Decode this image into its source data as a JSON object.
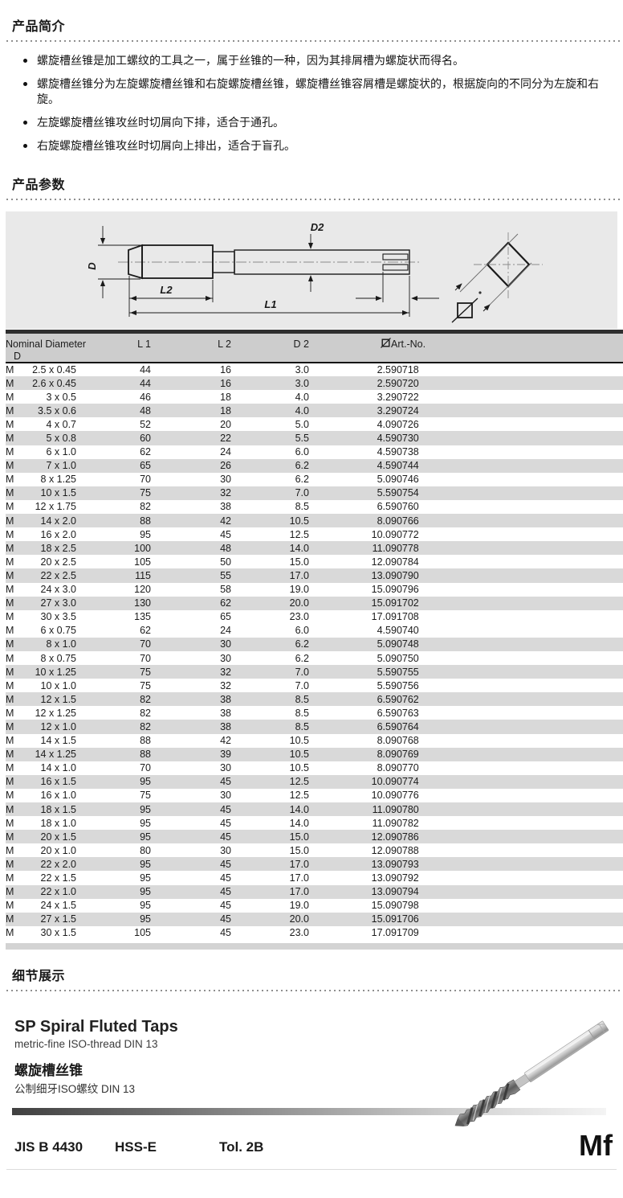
{
  "sections": {
    "intro_title": "产品简介",
    "params_title": "产品参数",
    "details_title": "细节展示"
  },
  "intro": {
    "bullets": [
      "螺旋槽丝锥是加工螺纹的工具之一，属于丝锥的一种，因为其排屑槽为螺旋状而得名。",
      "螺旋槽丝锥分为左旋螺旋槽丝锥和右旋螺旋槽丝锥，螺旋槽丝锥容屑槽是螺旋状的，根据旋向的不同分为左旋和右旋。",
      "左旋螺旋槽丝锥攻丝时切屑向下排，适合于通孔。",
      "右旋螺旋槽丝锥攻丝时切屑向上排出，适合于盲孔。"
    ]
  },
  "diagram": {
    "labels": {
      "d": "D",
      "l2": "L2",
      "l1": "L1",
      "d2": "D2"
    },
    "icons": {
      "square_section": "square-with-diagonal-slash"
    }
  },
  "table": {
    "header": {
      "nominal_line1": "Nominal Diameter",
      "nominal_line2": "D",
      "l1": "L 1",
      "l2": "L 2",
      "d2": "D 2",
      "square_icon": "square-with-diagonal-slash",
      "art": "Art.-No."
    },
    "rows": [
      {
        "m": "M",
        "size": "2.5 x 0.45",
        "l1": "44",
        "l2": "16",
        "d2": "3.0",
        "sq": "2.5",
        "art": "90718",
        "shaded": false
      },
      {
        "m": "M",
        "size": "2.6 x 0.45",
        "l1": "44",
        "l2": "16",
        "d2": "3.0",
        "sq": "2.5",
        "art": "90720",
        "shaded": true
      },
      {
        "m": "M",
        "size": "3 x 0.5",
        "l1": "46",
        "l2": "18",
        "d2": "4.0",
        "sq": "3.2",
        "art": "90722",
        "shaded": false
      },
      {
        "m": "M",
        "size": "3.5 x 0.6",
        "l1": "48",
        "l2": "18",
        "d2": "4.0",
        "sq": "3.2",
        "art": "90724",
        "shaded": true
      },
      {
        "m": "M",
        "size": "4 x 0.7",
        "l1": "52",
        "l2": "20",
        "d2": "5.0",
        "sq": "4.0",
        "art": "90726",
        "shaded": false
      },
      {
        "m": "M",
        "size": "5 x 0.8",
        "l1": "60",
        "l2": "22",
        "d2": "5.5",
        "sq": "4.5",
        "art": "90730",
        "shaded": true
      },
      {
        "m": "M",
        "size": "6 x 1.0",
        "l1": "62",
        "l2": "24",
        "d2": "6.0",
        "sq": "4.5",
        "art": "90738",
        "shaded": false
      },
      {
        "m": "M",
        "size": "7 x 1.0",
        "l1": "65",
        "l2": "26",
        "d2": "6.2",
        "sq": "4.5",
        "art": "90744",
        "shaded": true
      },
      {
        "m": "M",
        "size": "8 x 1.25",
        "l1": "70",
        "l2": "30",
        "d2": "6.2",
        "sq": "5.0",
        "art": "90746",
        "shaded": false
      },
      {
        "m": "M",
        "size": "10 x 1.5",
        "l1": "75",
        "l2": "32",
        "d2": "7.0",
        "sq": "5.5",
        "art": "90754",
        "shaded": true
      },
      {
        "m": "M",
        "size": "12 x 1.75",
        "l1": "82",
        "l2": "38",
        "d2": "8.5",
        "sq": "6.5",
        "art": "90760",
        "shaded": false
      },
      {
        "m": "M",
        "size": "14 x 2.0",
        "l1": "88",
        "l2": "42",
        "d2": "10.5",
        "sq": "8.0",
        "art": "90766",
        "shaded": true
      },
      {
        "m": "M",
        "size": "16 x 2.0",
        "l1": "95",
        "l2": "45",
        "d2": "12.5",
        "sq": "10.0",
        "art": "90772",
        "shaded": false
      },
      {
        "m": "M",
        "size": "18 x 2.5",
        "l1": "100",
        "l2": "48",
        "d2": "14.0",
        "sq": "11.0",
        "art": "90778",
        "shaded": true
      },
      {
        "m": "M",
        "size": "20 x 2.5",
        "l1": "105",
        "l2": "50",
        "d2": "15.0",
        "sq": "12.0",
        "art": "90784",
        "shaded": false
      },
      {
        "m": "M",
        "size": "22 x 2.5",
        "l1": "115",
        "l2": "55",
        "d2": "17.0",
        "sq": "13.0",
        "art": "90790",
        "shaded": true
      },
      {
        "m": "M",
        "size": "24 x 3.0",
        "l1": "120",
        "l2": "58",
        "d2": "19.0",
        "sq": "15.0",
        "art": "90796",
        "shaded": false
      },
      {
        "m": "M",
        "size": "27 x 3.0",
        "l1": "130",
        "l2": "62",
        "d2": "20.0",
        "sq": "15.0",
        "art": "91702",
        "shaded": true
      },
      {
        "m": "M",
        "size": "30 x 3.5",
        "l1": "135",
        "l2": "65",
        "d2": "23.0",
        "sq": "17.0",
        "art": "91708",
        "shaded": false
      },
      {
        "m": "M",
        "size": "6 x 0.75",
        "l1": "62",
        "l2": "24",
        "d2": "6.0",
        "sq": "4.5",
        "art": "90740",
        "shaded": false
      },
      {
        "m": "M",
        "size": "8 x 1.0",
        "l1": "70",
        "l2": "30",
        "d2": "6.2",
        "sq": "5.0",
        "art": "90748",
        "shaded": true
      },
      {
        "m": "M",
        "size": "8 x 0.75",
        "l1": "70",
        "l2": "30",
        "d2": "6.2",
        "sq": "5.0",
        "art": "90750",
        "shaded": false
      },
      {
        "m": "M",
        "size": "10 x 1.25",
        "l1": "75",
        "l2": "32",
        "d2": "7.0",
        "sq": "5.5",
        "art": "90755",
        "shaded": true
      },
      {
        "m": "M",
        "size": "10 x 1.0",
        "l1": "75",
        "l2": "32",
        "d2": "7.0",
        "sq": "5.5",
        "art": "90756",
        "shaded": false
      },
      {
        "m": "M",
        "size": "12 x 1.5",
        "l1": "82",
        "l2": "38",
        "d2": "8.5",
        "sq": "6.5",
        "art": "90762",
        "shaded": true
      },
      {
        "m": "M",
        "size": "12 x 1.25",
        "l1": "82",
        "l2": "38",
        "d2": "8.5",
        "sq": "6.5",
        "art": "90763",
        "shaded": false
      },
      {
        "m": "M",
        "size": "12 x 1.0",
        "l1": "82",
        "l2": "38",
        "d2": "8.5",
        "sq": "6.5",
        "art": "90764",
        "shaded": true
      },
      {
        "m": "M",
        "size": "14 x 1.5",
        "l1": "88",
        "l2": "42",
        "d2": "10.5",
        "sq": "8.0",
        "art": "90768",
        "shaded": false
      },
      {
        "m": "M",
        "size": "14 x 1.25",
        "l1": "88",
        "l2": "39",
        "d2": "10.5",
        "sq": "8.0",
        "art": "90769",
        "shaded": true
      },
      {
        "m": "M",
        "size": "14 x 1.0",
        "l1": "70",
        "l2": "30",
        "d2": "10.5",
        "sq": "8.0",
        "art": "90770",
        "shaded": false
      },
      {
        "m": "M",
        "size": "16 x 1.5",
        "l1": "95",
        "l2": "45",
        "d2": "12.5",
        "sq": "10.0",
        "art": "90774",
        "shaded": true
      },
      {
        "m": "M",
        "size": "16 x 1.0",
        "l1": "75",
        "l2": "30",
        "d2": "12.5",
        "sq": "10.0",
        "art": "90776",
        "shaded": false
      },
      {
        "m": "M",
        "size": "18 x 1.5",
        "l1": "95",
        "l2": "45",
        "d2": "14.0",
        "sq": "11.0",
        "art": "90780",
        "shaded": true
      },
      {
        "m": "M",
        "size": "18 x 1.0",
        "l1": "95",
        "l2": "45",
        "d2": "14.0",
        "sq": "11.0",
        "art": "90782",
        "shaded": false
      },
      {
        "m": "M",
        "size": "20 x 1.5",
        "l1": "95",
        "l2": "45",
        "d2": "15.0",
        "sq": "12.0",
        "art": "90786",
        "shaded": true
      },
      {
        "m": "M",
        "size": "20 x 1.0",
        "l1": "80",
        "l2": "30",
        "d2": "15.0",
        "sq": "12.0",
        "art": "90788",
        "shaded": false
      },
      {
        "m": "M",
        "size": "22 x 2.0",
        "l1": "95",
        "l2": "45",
        "d2": "17.0",
        "sq": "13.0",
        "art": "90793",
        "shaded": true
      },
      {
        "m": "M",
        "size": "22 x 1.5",
        "l1": "95",
        "l2": "45",
        "d2": "17.0",
        "sq": "13.0",
        "art": "90792",
        "shaded": false
      },
      {
        "m": "M",
        "size": "22 x 1.0",
        "l1": "95",
        "l2": "45",
        "d2": "17.0",
        "sq": "13.0",
        "art": "90794",
        "shaded": true
      },
      {
        "m": "M",
        "size": "24 x 1.5",
        "l1": "95",
        "l2": "45",
        "d2": "19.0",
        "sq": "15.0",
        "art": "90798",
        "shaded": false
      },
      {
        "m": "M",
        "size": "27 x 1.5",
        "l1": "95",
        "l2": "45",
        "d2": "20.0",
        "sq": "15.0",
        "art": "91706",
        "shaded": true
      },
      {
        "m": "M",
        "size": "30 x 1.5",
        "l1": "105",
        "l2": "45",
        "d2": "23.0",
        "sq": "17.0",
        "art": "91709",
        "shaded": false
      }
    ]
  },
  "footer": {
    "product_title_en": "SP Spiral Fluted Taps",
    "product_sub_en": "metric-fine ISO-thread DIN 13",
    "product_title_zh": "螺旋槽丝锥",
    "product_sub_zh": "公制细牙ISO螺纹 DIN 13",
    "spec_standard": "JIS B 4430",
    "spec_material": "HSS-E",
    "spec_tolerance": "Tol. 2B",
    "thread_code": "Mf"
  },
  "colors": {
    "panel_bg": "#e9e9e9",
    "table_header_bg": "#cdcdcd",
    "row_stripe": "#d9d9d9",
    "table_top_bar": "#2f2f2f"
  }
}
